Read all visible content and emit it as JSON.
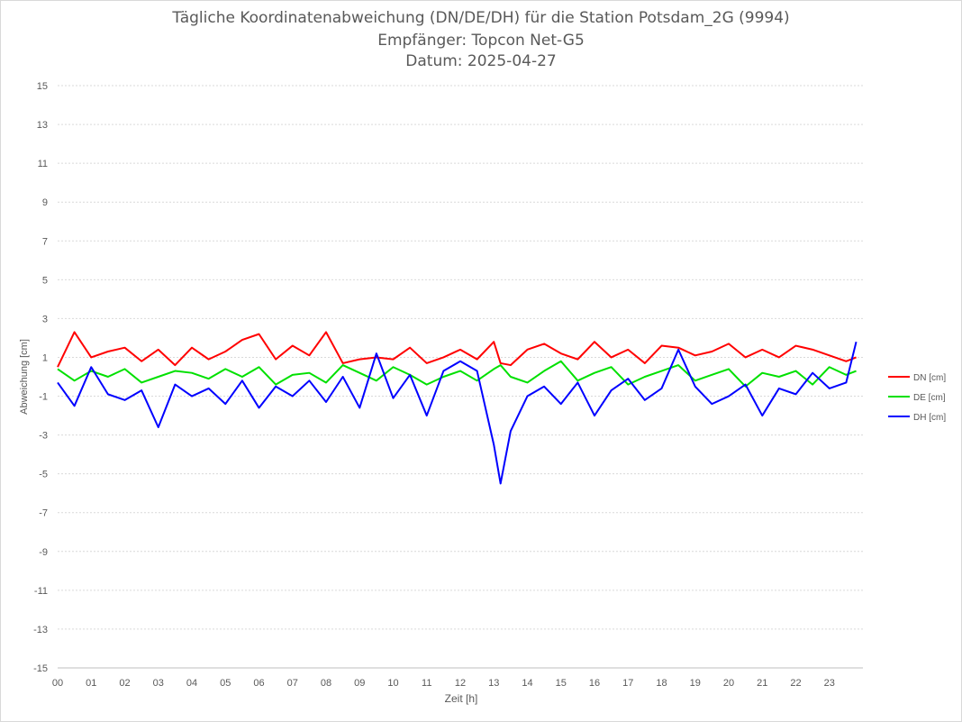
{
  "chart_data": {
    "type": "line",
    "title": [
      "Tägliche Koordinatenabweichung (DN/DE/DH) für die Station Potsdam_2G (9994)",
      "Empfänger: Topcon Net-G5",
      "Datum: 2025-04-27"
    ],
    "xlabel": "Zeit [h]",
    "ylabel": "Abweichung [cm]",
    "xlim": [
      0,
      24
    ],
    "ylim": [
      -15,
      15
    ],
    "x_ticks": [
      "00",
      "01",
      "02",
      "03",
      "04",
      "05",
      "06",
      "07",
      "08",
      "09",
      "10",
      "11",
      "12",
      "13",
      "14",
      "15",
      "16",
      "17",
      "18",
      "19",
      "20",
      "21",
      "22",
      "23"
    ],
    "y_ticks": [
      15,
      13,
      11,
      9,
      7,
      5,
      3,
      1,
      -1,
      -3,
      -5,
      -7,
      -9,
      -11,
      -13,
      -15
    ],
    "grid": "horizontal dotted",
    "legend_position": "right",
    "x": [
      0.0,
      0.5,
      1.0,
      1.5,
      2.0,
      2.5,
      3.0,
      3.5,
      4.0,
      4.5,
      5.0,
      5.5,
      6.0,
      6.5,
      7.0,
      7.5,
      8.0,
      8.5,
      9.0,
      9.5,
      10.0,
      10.5,
      11.0,
      11.5,
      12.0,
      12.5,
      13.0,
      13.2,
      13.5,
      14.0,
      14.5,
      15.0,
      15.5,
      16.0,
      16.5,
      17.0,
      17.5,
      18.0,
      18.5,
      19.0,
      19.5,
      20.0,
      20.5,
      21.0,
      21.5,
      22.0,
      22.5,
      23.0,
      23.5,
      23.8
    ],
    "series": [
      {
        "name": "DN [cm]",
        "color": "#ff0000",
        "values": [
          0.5,
          2.3,
          1.0,
          1.3,
          1.5,
          0.8,
          1.4,
          0.6,
          1.5,
          0.9,
          1.3,
          1.9,
          2.2,
          0.9,
          1.6,
          1.1,
          2.3,
          0.7,
          0.9,
          1.0,
          0.9,
          1.5,
          0.7,
          1.0,
          1.4,
          0.9,
          1.8,
          0.7,
          0.6,
          1.4,
          1.7,
          1.2,
          0.9,
          1.8,
          1.0,
          1.4,
          0.7,
          1.6,
          1.5,
          1.1,
          1.3,
          1.7,
          1.0,
          1.4,
          1.0,
          1.6,
          1.4,
          1.1,
          0.8,
          1.0
        ]
      },
      {
        "name": "DE [cm]",
        "color": "#00e000",
        "values": [
          0.4,
          -0.2,
          0.3,
          0.0,
          0.4,
          -0.3,
          0.0,
          0.3,
          0.2,
          -0.1,
          0.4,
          0.0,
          0.5,
          -0.4,
          0.1,
          0.2,
          -0.3,
          0.6,
          0.2,
          -0.2,
          0.5,
          0.1,
          -0.4,
          0.0,
          0.3,
          -0.2,
          0.4,
          0.6,
          0.0,
          -0.3,
          0.3,
          0.8,
          -0.2,
          0.2,
          0.5,
          -0.4,
          0.0,
          0.3,
          0.6,
          -0.2,
          0.1,
          0.4,
          -0.5,
          0.2,
          0.0,
          0.3,
          -0.4,
          0.5,
          0.1,
          0.3
        ]
      },
      {
        "name": "DH [cm]",
        "color": "#0000ff",
        "values": [
          -0.3,
          -1.5,
          0.5,
          -0.9,
          -1.2,
          -0.7,
          -2.6,
          -0.4,
          -1.0,
          -0.6,
          -1.4,
          -0.2,
          -1.6,
          -0.5,
          -1.0,
          -0.2,
          -1.3,
          0.0,
          -1.6,
          1.2,
          -1.1,
          0.1,
          -2.0,
          0.3,
          0.8,
          0.3,
          -3.5,
          -5.5,
          -2.8,
          -1.0,
          -0.5,
          -1.4,
          -0.3,
          -2.0,
          -0.7,
          -0.1,
          -1.2,
          -0.6,
          1.4,
          -0.5,
          -1.4,
          -1.0,
          -0.4,
          -2.0,
          -0.6,
          -0.9,
          0.2,
          -0.6,
          -0.3,
          1.8
        ]
      }
    ],
    "legend": [
      "DN [cm]",
      "DE [cm]",
      "DH [cm]"
    ]
  }
}
